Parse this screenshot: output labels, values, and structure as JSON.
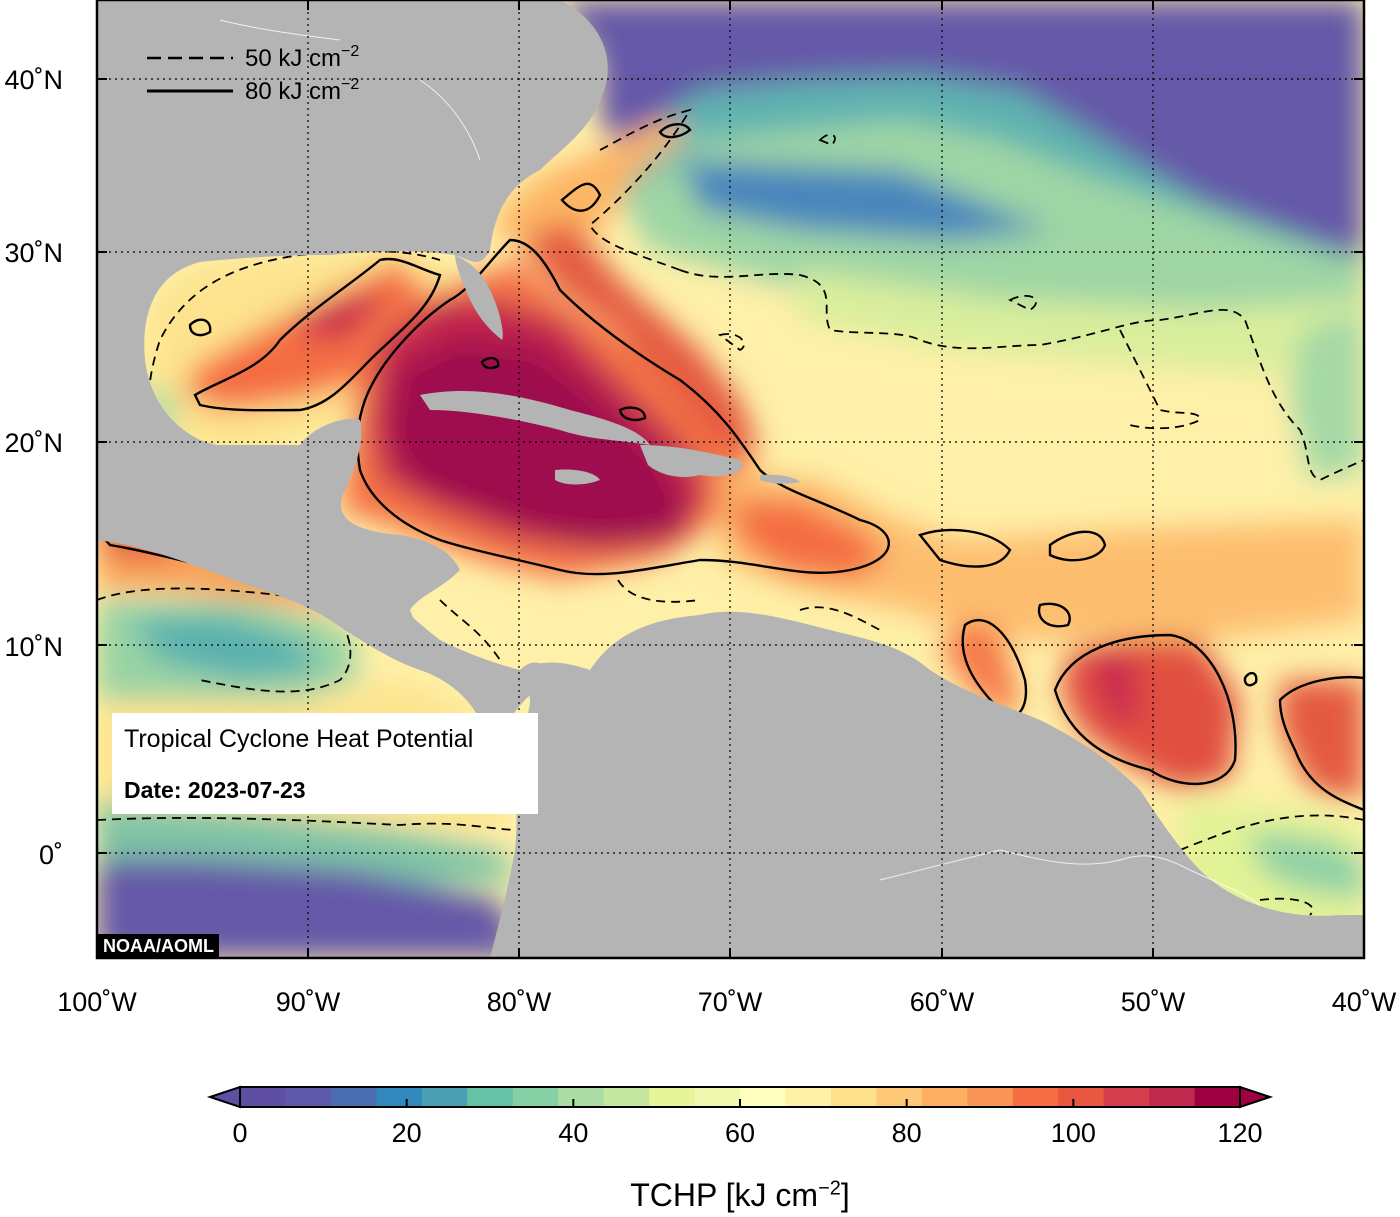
{
  "map": {
    "title": "Tropical Cyclone Heat Potential",
    "date_label": "Date: 2023-07-23",
    "credit": "NOAA/AOML",
    "legend": {
      "dashed_value": "50 kJ cm",
      "solid_value": "80 kJ cm",
      "unit_exponent": "−2"
    },
    "lon_labels": [
      "100˚W",
      "90˚W",
      "80˚W",
      "70˚W",
      "60˚W",
      "50˚W",
      "40˚W"
    ],
    "lat_labels": [
      "40˚N",
      "30˚N",
      "20˚N",
      "10˚N",
      "0˚"
    ],
    "extent": {
      "lon_min": -100,
      "lon_max": -40,
      "lat_min": -5,
      "lat_max": 44
    },
    "colors": {
      "land": "#b4b4b4",
      "low_heat": "#6558a8",
      "high_heat": "#9e0d4e"
    }
  },
  "colorbar": {
    "title_main": "TCHP [kJ cm",
    "title_exp": "−2",
    "title_close": "]",
    "ticks": [
      "0",
      "20",
      "40",
      "60",
      "80",
      "100",
      "120"
    ],
    "min": 0,
    "max": 120,
    "colors": [
      "#5e4fa2",
      "#6058a8",
      "#4a6eb0",
      "#3288bd",
      "#4a9fb3",
      "#66c2a5",
      "#87cfa4",
      "#abdda4",
      "#c6e7a0",
      "#e6f598",
      "#f0f8b0",
      "#ffffbf",
      "#fff2a6",
      "#fee08b",
      "#fdc877",
      "#fdae61",
      "#f99557",
      "#f46d43",
      "#e8573f",
      "#d53e4f",
      "#c02a4f",
      "#9e0142"
    ]
  }
}
